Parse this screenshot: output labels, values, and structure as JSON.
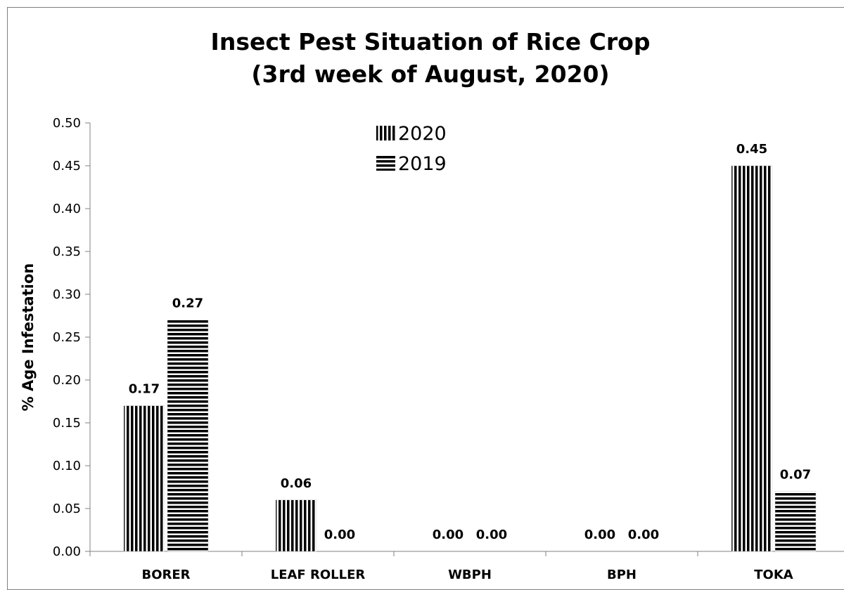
{
  "chart_data": {
    "type": "bar",
    "title": "Insect Pest Situation of Rice Crop",
    "subtitle": "(3rd week of August, 2020)",
    "ylabel": "% Age Infestation",
    "xlabel": "",
    "categories": [
      "BORER",
      "LEAF ROLLER",
      "WBPH",
      "BPH",
      "TOKA"
    ],
    "series": [
      {
        "name": "2020",
        "values": [
          0.17,
          0.06,
          0.0,
          0.0,
          0.45
        ],
        "labels": [
          "0.17",
          "0.06",
          "0.00",
          "0.00",
          "0.45"
        ],
        "pattern": "vertical-stripes"
      },
      {
        "name": "2019",
        "values": [
          0.27,
          0.0,
          0.0,
          0.0,
          0.07
        ],
        "labels": [
          "0.27",
          "0.00",
          "0.00",
          "0.00",
          "0.07"
        ],
        "pattern": "horizontal-stripes"
      }
    ],
    "ylim": [
      0,
      0.5
    ],
    "yticks": [
      "0.00",
      "0.05",
      "0.10",
      "0.15",
      "0.20",
      "0.25",
      "0.30",
      "0.35",
      "0.40",
      "0.45",
      "0.50"
    ],
    "grid": false,
    "legend_position": "top-center",
    "colors": {
      "bar_stripe": "#000000",
      "background": "#ffffff",
      "frame": "#7f7f7f"
    }
  }
}
